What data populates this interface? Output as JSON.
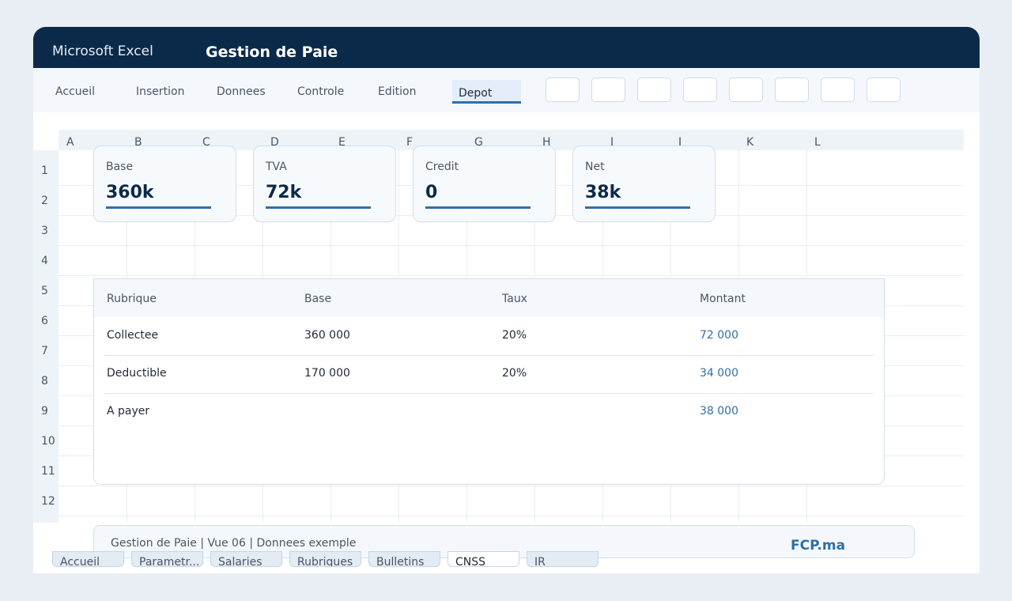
{
  "window": {
    "app_name": "Microsoft Excel",
    "doc_title": "Gestion de Paie"
  },
  "ribbon": {
    "tabs": [
      {
        "label": "Accueil"
      },
      {
        "label": "Insertion"
      },
      {
        "label": "Donnees"
      },
      {
        "label": "Controle"
      },
      {
        "label": "Edition"
      },
      {
        "label": "Depot",
        "active": true
      }
    ],
    "tool_buttons": 8
  },
  "grid": {
    "columns": [
      "A",
      "B",
      "C",
      "D",
      "E",
      "F",
      "G",
      "H",
      "I",
      "J",
      "K",
      "L"
    ],
    "rows": [
      "1",
      "2",
      "3",
      "4",
      "5",
      "6",
      "7",
      "8",
      "9",
      "10",
      "11",
      "12"
    ]
  },
  "kpis": [
    {
      "label": "Base",
      "value": "360k"
    },
    {
      "label": "TVA",
      "value": "72k"
    },
    {
      "label": "Credit",
      "value": "0"
    },
    {
      "label": "Net",
      "value": "38k"
    }
  ],
  "table": {
    "headers": [
      "Rubrique",
      "Base",
      "Taux",
      "Montant"
    ],
    "rows": [
      {
        "rubrique": "Collectee",
        "base": "360 000",
        "taux": "20%",
        "montant": "72 000"
      },
      {
        "rubrique": "Deductible",
        "base": "170 000",
        "taux": "20%",
        "montant": "34 000"
      },
      {
        "rubrique": "A payer",
        "base": "",
        "taux": "",
        "montant": "38 000"
      }
    ]
  },
  "footer": {
    "text": "Gestion de Paie | Vue 06 | Donnees exemple",
    "brand": "FCP.ma"
  },
  "sheet_tabs": [
    {
      "label": "Accueil"
    },
    {
      "label": "Parametr..."
    },
    {
      "label": "Salaries"
    },
    {
      "label": "Rubriques"
    },
    {
      "label": "Bulletins"
    },
    {
      "label": "CNSS",
      "active": true
    },
    {
      "label": "IR"
    }
  ],
  "colors": {
    "titlebar": "#0b2a4a",
    "accent": "#2f6fa8"
  }
}
